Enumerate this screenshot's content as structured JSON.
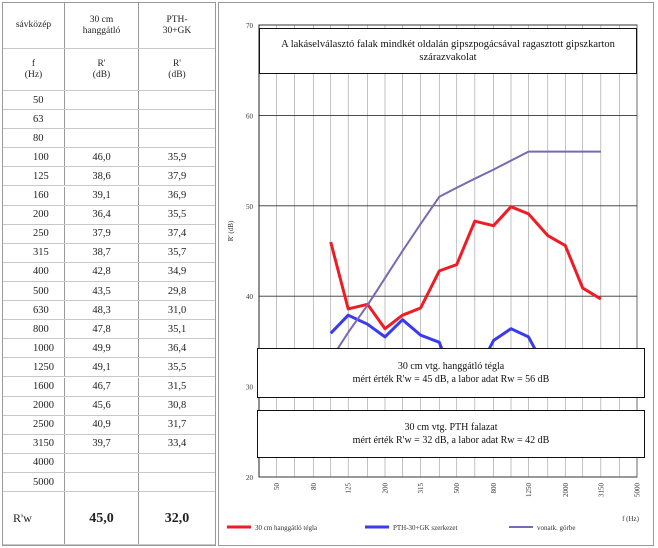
{
  "table": {
    "headers": [
      [
        "sávközép",
        "30 cm\nhanggátló",
        "PTH-\n30+GK"
      ],
      [
        "f\n(Hz)",
        "R'\n(dB)",
        "R'\n(dB)"
      ]
    ],
    "rows": [
      [
        "50",
        "",
        ""
      ],
      [
        "63",
        "",
        ""
      ],
      [
        "80",
        "",
        ""
      ],
      [
        "100",
        "46,0",
        "35,9"
      ],
      [
        "125",
        "38,6",
        "37,9"
      ],
      [
        "160",
        "39,1",
        "36,9"
      ],
      [
        "200",
        "36,4",
        "35,5"
      ],
      [
        "250",
        "37,9",
        "37,4"
      ],
      [
        "315",
        "38,7",
        "35,7"
      ],
      [
        "400",
        "42,8",
        "34,9"
      ],
      [
        "500",
        "43,5",
        "29,8"
      ],
      [
        "630",
        "48,3",
        "31,0"
      ],
      [
        "800",
        "47,8",
        "35,1"
      ],
      [
        "1000",
        "49,9",
        "36,4"
      ],
      [
        "1250",
        "49,1",
        "35,5"
      ],
      [
        "1600",
        "46,7",
        "31,5"
      ],
      [
        "2000",
        "45,6",
        "30,8"
      ],
      [
        "2500",
        "40,9",
        "31,7"
      ],
      [
        "3150",
        "39,7",
        "33,4"
      ],
      [
        "4000",
        "",
        ""
      ],
      [
        "5000",
        "",
        ""
      ]
    ],
    "total": [
      "R'w",
      "45,0",
      "32,0"
    ]
  },
  "chart_data": {
    "type": "line",
    "title": "A lakáselválasztó falak mindkét oldalán gipszpogácsával ragasztott gipszkarton szárazvakolat",
    "ylabel": "R' (dB)",
    "xlabel": "f (Hz)",
    "ylim": [
      20,
      70
    ],
    "yticks": [
      20,
      30,
      40,
      50,
      60,
      70
    ],
    "x_scale": "log",
    "xticks": [
      "50",
      "80",
      "125",
      "200",
      "315",
      "500",
      "800",
      "1250",
      "2000",
      "3150",
      "5000"
    ],
    "grid": true,
    "x": [
      100,
      125,
      160,
      200,
      250,
      315,
      400,
      500,
      630,
      800,
      1000,
      1250,
      1600,
      2000,
      2500,
      3150
    ],
    "series": [
      {
        "name": "30 cm hanggátló tégla",
        "color": "#ee1c24",
        "values": [
          46.0,
          38.6,
          39.1,
          36.4,
          37.9,
          38.7,
          42.8,
          43.5,
          48.3,
          47.8,
          49.9,
          49.1,
          46.7,
          45.6,
          40.9,
          39.7
        ]
      },
      {
        "name": "PTH-30+GK szerkezet",
        "color": "#3a3aee",
        "values": [
          35.9,
          37.9,
          36.9,
          35.5,
          37.4,
          35.7,
          34.9,
          29.8,
          31.0,
          35.1,
          36.4,
          35.5,
          31.5,
          30.8,
          31.7,
          33.4
        ]
      },
      {
        "name": "vonatk. görbe",
        "color": "#7a68b0",
        "values": [
          33,
          36,
          39,
          42,
          45,
          48,
          51,
          52,
          53,
          54,
          55,
          56,
          56,
          56,
          56,
          56
        ]
      }
    ],
    "annotations": [
      {
        "line1": "30 cm vtg. hanggátló tégla",
        "line2": "mért érték R'w = 45 dB, a labor adat Rw = 56 dB"
      },
      {
        "line1": "30 cm vtg. PTH falazat",
        "line2": "mért érték R'w = 32 dB, a labor adat Rw = 42 dB"
      }
    ],
    "legend_position": "bottom"
  }
}
